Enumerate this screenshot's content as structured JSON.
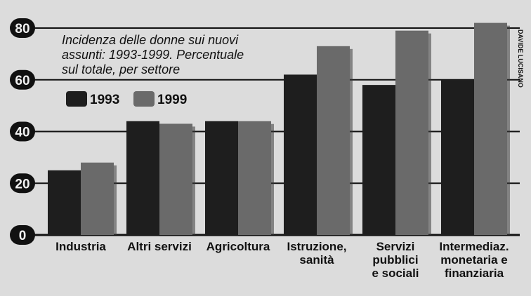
{
  "chart_data": {
    "type": "bar",
    "title": "Incidenza delle donne sui nuovi assunti: 1993-1999. Percentuale sul totale, per settore",
    "title_lines": [
      "Incidenza delle donne sui nuovi",
      "assunti: 1993-1999. Percentuale",
      "sul totale, per settore"
    ],
    "categories": [
      [
        "Industria"
      ],
      [
        "Altri servizi"
      ],
      [
        "Agricoltura"
      ],
      [
        "Istruzione,",
        "sanità"
      ],
      [
        "Servizi",
        "pubblici",
        "e sociali"
      ],
      [
        "Intermediaz.",
        "monetaria e",
        "finanziaria"
      ]
    ],
    "series": [
      {
        "name": "1993",
        "color": "#1e1e1e",
        "values": [
          25,
          44,
          44,
          62,
          58,
          60
        ]
      },
      {
        "name": "1999",
        "color": "#6a6a6a",
        "values": [
          28,
          43,
          44,
          73,
          79,
          82
        ]
      }
    ],
    "yticks": [
      "0",
      "20",
      "40",
      "60",
      "80"
    ],
    "ylim": [
      0,
      80
    ],
    "grid": true,
    "legend_position": "top-left",
    "credit": "DAVIDE LUCISANO"
  }
}
